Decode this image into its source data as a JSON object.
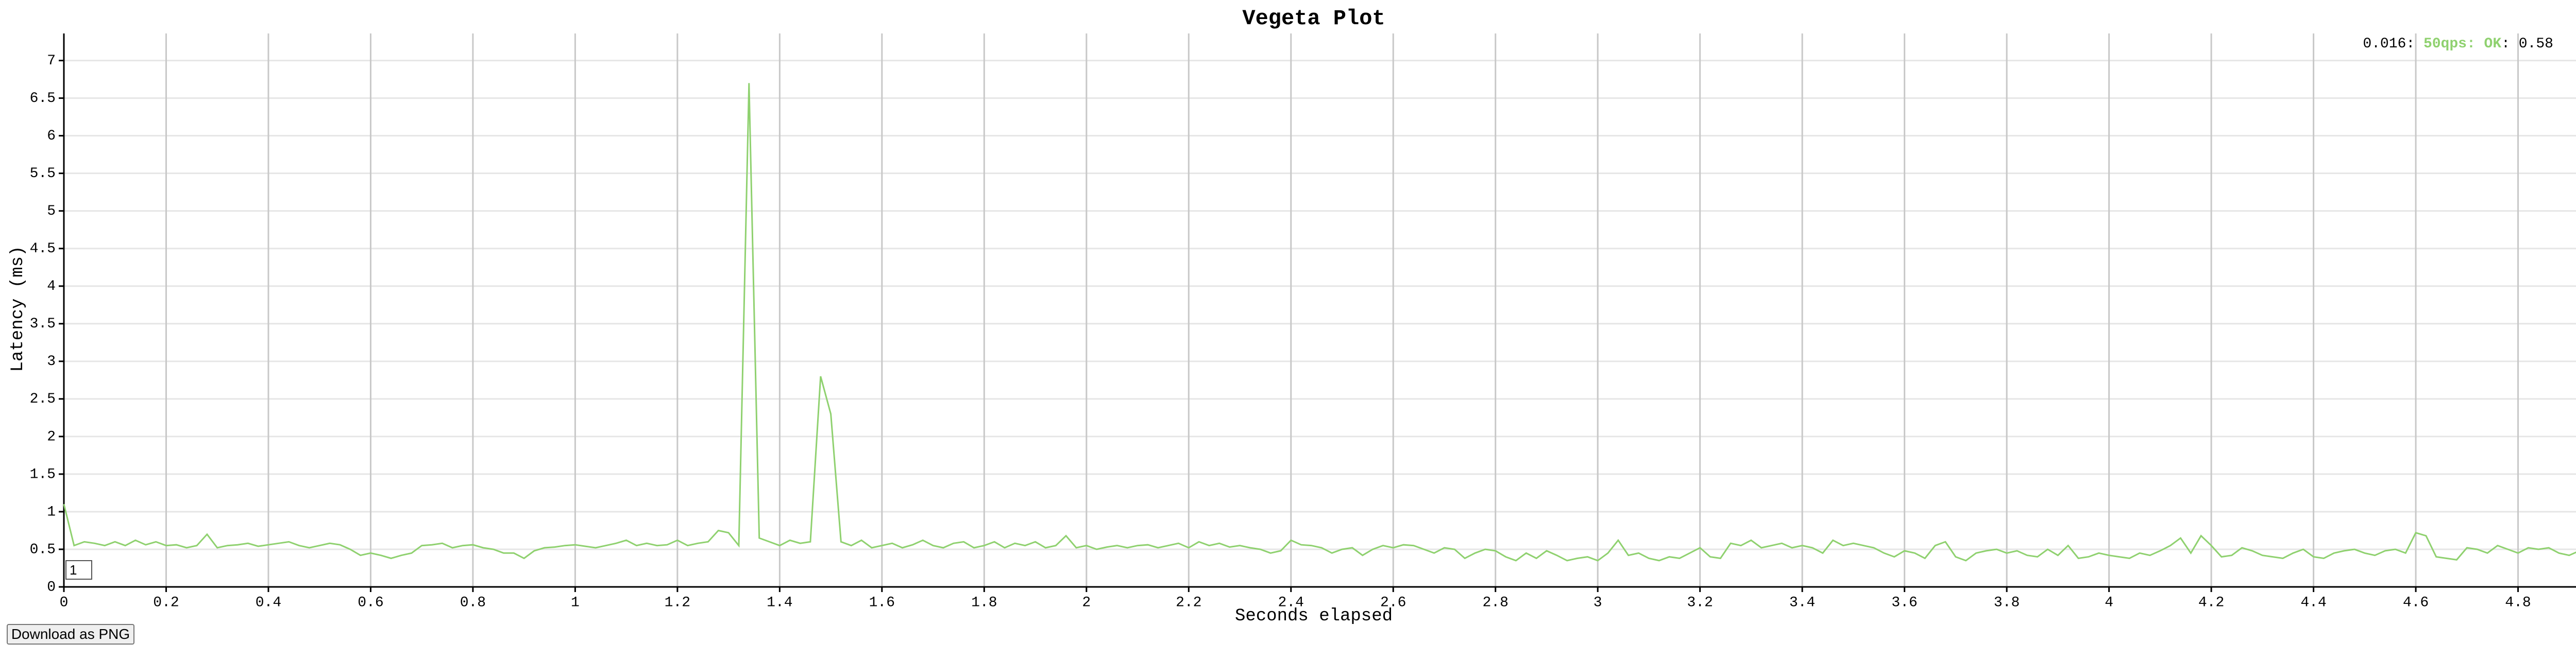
{
  "chart_data": {
    "type": "line",
    "title": "Vegeta Plot",
    "x_label": "Seconds elapsed",
    "y_label": "Latency (ms)",
    "x": [
      0,
      0.02,
      0.04,
      0.06,
      0.08,
      0.1,
      0.12,
      0.14,
      0.16,
      0.18,
      0.2,
      0.22,
      0.24,
      0.26,
      0.28,
      0.3,
      0.32,
      0.34,
      0.36,
      0.38,
      0.4,
      0.42,
      0.44,
      0.46,
      0.48,
      0.5,
      0.52,
      0.54,
      0.56,
      0.58,
      0.6,
      0.62,
      0.64,
      0.66,
      0.68,
      0.7,
      0.72,
      0.74,
      0.76,
      0.78,
      0.8,
      0.82,
      0.84,
      0.86,
      0.88,
      0.9,
      0.92,
      0.94,
      0.96,
      0.98,
      1,
      1.02,
      1.04,
      1.06,
      1.08,
      1.1,
      1.12,
      1.14,
      1.16,
      1.18,
      1.2,
      1.22,
      1.24,
      1.26,
      1.28,
      1.3,
      1.32,
      1.34,
      1.36,
      1.38,
      1.4,
      1.42,
      1.44,
      1.46,
      1.48,
      1.5,
      1.52,
      1.54,
      1.56,
      1.58,
      1.6,
      1.62,
      1.64,
      1.66,
      1.68,
      1.7,
      1.72,
      1.74,
      1.76,
      1.78,
      1.8,
      1.82,
      1.84,
      1.86,
      1.88,
      1.9,
      1.92,
      1.94,
      1.96,
      1.98,
      2,
      2.02,
      2.04,
      2.06,
      2.08,
      2.1,
      2.12,
      2.14,
      2.16,
      2.18,
      2.2,
      2.22,
      2.24,
      2.26,
      2.28,
      2.3,
      2.32,
      2.34,
      2.36,
      2.38,
      2.4,
      2.42,
      2.44,
      2.46,
      2.48,
      2.5,
      2.52,
      2.54,
      2.56,
      2.58,
      2.6,
      2.62,
      2.64,
      2.66,
      2.68,
      2.7,
      2.72,
      2.74,
      2.76,
      2.78,
      2.8,
      2.82,
      2.84,
      2.86,
      2.88,
      2.9,
      2.92,
      2.94,
      2.96,
      2.98,
      3,
      3.02,
      3.04,
      3.06,
      3.08,
      3.1,
      3.12,
      3.14,
      3.16,
      3.18,
      3.2,
      3.22,
      3.24,
      3.26,
      3.28,
      3.3,
      3.32,
      3.34,
      3.36,
      3.38,
      3.4,
      3.42,
      3.44,
      3.46,
      3.48,
      3.5,
      3.52,
      3.54,
      3.56,
      3.58,
      3.6,
      3.62,
      3.64,
      3.66,
      3.68,
      3.7,
      3.72,
      3.74,
      3.76,
      3.78,
      3.8,
      3.82,
      3.84,
      3.86,
      3.88,
      3.9,
      3.92,
      3.94,
      3.96,
      3.98,
      4,
      4.02,
      4.04,
      4.06,
      4.08,
      4.1,
      4.12,
      4.14,
      4.16,
      4.18,
      4.2,
      4.22,
      4.24,
      4.26,
      4.28,
      4.3,
      4.32,
      4.34,
      4.36,
      4.38,
      4.4,
      4.42,
      4.44,
      4.46,
      4.48,
      4.5,
      4.52,
      4.54,
      4.56,
      4.58,
      4.6,
      4.62,
      4.64,
      4.66,
      4.68,
      4.7,
      4.72,
      4.74,
      4.76,
      4.78,
      4.8,
      4.82,
      4.84,
      4.86,
      4.88,
      4.9,
      4.92,
      4.94,
      4.96,
      4.98
    ],
    "series": [
      {
        "name": "50qps: OK",
        "color": "#8fd16f",
        "values": [
          1.1,
          0.55,
          0.6,
          0.58,
          0.55,
          0.6,
          0.55,
          0.62,
          0.56,
          0.6,
          0.55,
          0.56,
          0.52,
          0.55,
          0.7,
          0.52,
          0.55,
          0.56,
          0.58,
          0.54,
          0.56,
          0.58,
          0.6,
          0.55,
          0.52,
          0.55,
          0.58,
          0.56,
          0.5,
          0.42,
          0.45,
          0.42,
          0.38,
          0.42,
          0.45,
          0.55,
          0.56,
          0.58,
          0.52,
          0.55,
          0.56,
          0.52,
          0.5,
          0.45,
          0.45,
          0.38,
          0.48,
          0.52,
          0.53,
          0.55,
          0.56,
          0.54,
          0.52,
          0.55,
          0.58,
          0.62,
          0.55,
          0.58,
          0.55,
          0.56,
          0.62,
          0.55,
          0.58,
          0.6,
          0.75,
          0.72,
          0.55,
          6.7,
          0.65,
          0.6,
          0.55,
          0.62,
          0.58,
          0.6,
          2.8,
          2.3,
          0.6,
          0.55,
          0.62,
          0.52,
          0.55,
          0.58,
          0.52,
          0.56,
          0.62,
          0.55,
          0.52,
          0.58,
          0.6,
          0.52,
          0.55,
          0.6,
          0.52,
          0.58,
          0.55,
          0.6,
          0.52,
          0.55,
          0.68,
          0.52,
          0.55,
          0.5,
          0.53,
          0.55,
          0.52,
          0.55,
          0.56,
          0.52,
          0.55,
          0.58,
          0.52,
          0.6,
          0.55,
          0.58,
          0.53,
          0.55,
          0.52,
          0.5,
          0.45,
          0.48,
          0.62,
          0.56,
          0.55,
          0.52,
          0.45,
          0.5,
          0.52,
          0.42,
          0.5,
          0.55,
          0.52,
          0.56,
          0.55,
          0.5,
          0.45,
          0.52,
          0.5,
          0.38,
          0.45,
          0.5,
          0.48,
          0.4,
          0.35,
          0.45,
          0.38,
          0.48,
          0.42,
          0.35,
          0.38,
          0.4,
          0.35,
          0.45,
          0.62,
          0.42,
          0.45,
          0.38,
          0.35,
          0.4,
          0.38,
          0.45,
          0.52,
          0.4,
          0.38,
          0.58,
          0.55,
          0.62,
          0.52,
          0.55,
          0.58,
          0.52,
          0.55,
          0.52,
          0.45,
          0.62,
          0.55,
          0.58,
          0.55,
          0.52,
          0.45,
          0.4,
          0.48,
          0.45,
          0.38,
          0.55,
          0.6,
          0.4,
          0.35,
          0.45,
          0.48,
          0.5,
          0.45,
          0.48,
          0.42,
          0.4,
          0.5,
          0.42,
          0.55,
          0.38,
          0.4,
          0.45,
          0.42,
          0.4,
          0.38,
          0.45,
          0.42,
          0.48,
          0.55,
          0.65,
          0.45,
          0.68,
          0.55,
          0.4,
          0.42,
          0.52,
          0.48,
          0.42,
          0.4,
          0.38,
          0.45,
          0.5,
          0.4,
          0.38,
          0.45,
          0.48,
          0.5,
          0.45,
          0.42,
          0.48,
          0.5,
          0.45,
          0.72,
          0.68,
          0.4,
          0.38,
          0.36,
          0.52,
          0.5,
          0.45,
          0.55,
          0.5,
          0.45,
          0.52,
          0.5,
          0.52,
          0.45,
          0.42,
          0.48,
          0.5,
          0.45,
          0.42
        ]
      }
    ],
    "xlim": [
      0,
      5
    ],
    "ylim": [
      0,
      7.36
    ],
    "xticks": [
      0,
      0.2,
      0.4,
      0.6,
      0.8,
      1,
      1.2,
      1.4,
      1.6,
      1.8,
      2,
      2.2,
      2.4,
      2.6,
      2.8,
      3,
      3.2,
      3.4,
      3.6,
      3.8,
      4,
      4.2,
      4.4,
      4.6,
      4.8
    ],
    "yticks": [
      0,
      0.5,
      1,
      1.5,
      2,
      2.5,
      3,
      3.5,
      4,
      4.5,
      5,
      5.5,
      6,
      6.5,
      7
    ],
    "grid": true,
    "legend": {
      "prefix": "0.016: ",
      "suffix": ": 0.58"
    }
  },
  "roll_period": "1",
  "download_button": "Download as PNG"
}
